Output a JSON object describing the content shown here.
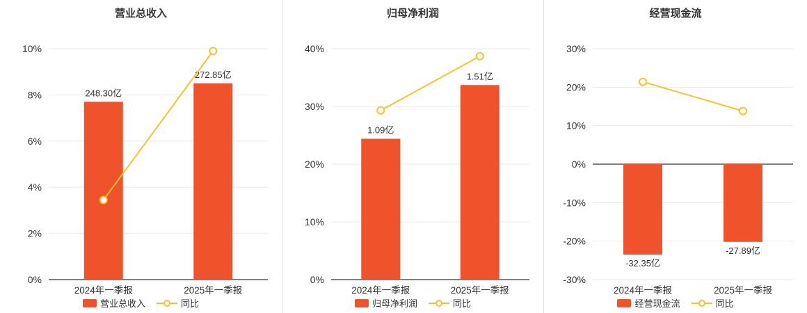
{
  "colors": {
    "bar": "#f0532b",
    "line": "#f5c42c",
    "grid": "#e8e8e8",
    "axis": "#555555",
    "text": "#333333",
    "background": "#ffffff"
  },
  "chart_data": [
    {
      "type": "bar",
      "title": "营业总收入",
      "categories": [
        "2024年一季报",
        "2025年一季报"
      ],
      "bar_series": {
        "name": "营业总收入",
        "labels": [
          "248.30亿",
          "272.85亿"
        ],
        "display_values": [
          7.7,
          8.5
        ]
      },
      "line_series": {
        "name": "同比",
        "values": [
          3.45,
          9.9
        ]
      },
      "ylim": [
        0,
        10
      ],
      "yticks": [
        0,
        2,
        4,
        6,
        8,
        10
      ],
      "ytick_labels": [
        "0%",
        "2%",
        "4%",
        "6%",
        "8%",
        "10%"
      ],
      "legend": [
        "营业总收入",
        "同比"
      ],
      "grid": true,
      "legend_position": "bottom"
    },
    {
      "type": "bar",
      "title": "归母净利润",
      "categories": [
        "2024年一季报",
        "2025年一季报"
      ],
      "bar_series": {
        "name": "归母净利润",
        "labels": [
          "1.09亿",
          "1.51亿"
        ],
        "display_values": [
          24.4,
          33.7
        ]
      },
      "line_series": {
        "name": "同比",
        "values": [
          29.3,
          38.7
        ]
      },
      "ylim": [
        0,
        40
      ],
      "yticks": [
        0,
        10,
        20,
        30,
        40
      ],
      "ytick_labels": [
        "0%",
        "10%",
        "20%",
        "30%",
        "40%"
      ],
      "legend": [
        "归母净利润",
        "同比"
      ],
      "grid": true,
      "legend_position": "bottom"
    },
    {
      "type": "bar",
      "title": "经营现金流",
      "categories": [
        "2024年一季报",
        "2025年一季报"
      ],
      "bar_series": {
        "name": "经营现金流",
        "labels": [
          "-32.35亿",
          "-27.89亿"
        ],
        "display_values": [
          -23.5,
          -20.2
        ]
      },
      "line_series": {
        "name": "同比",
        "values": [
          21.4,
          13.8
        ]
      },
      "ylim": [
        -30,
        30
      ],
      "yticks": [
        30,
        20,
        10,
        0,
        -10,
        -20,
        -30
      ],
      "ytick_labels": [
        "30%",
        "20%",
        "10%",
        "0%",
        "-10%",
        "-20%",
        "-30%"
      ],
      "legend": [
        "经营现金流",
        "同比"
      ],
      "grid": true,
      "legend_position": "bottom"
    }
  ]
}
